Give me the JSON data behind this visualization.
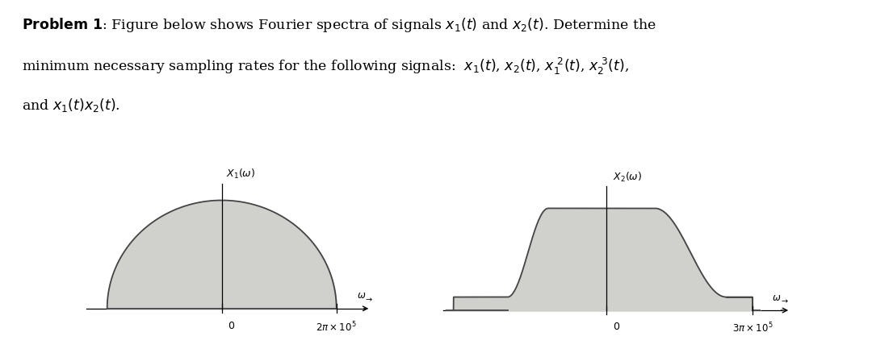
{
  "fill_color": "#d0d0cc",
  "edge_color": "#444444",
  "line_color": "#000000",
  "bg_color": "#ffffff",
  "graph1": {
    "x_label": "2π × 10⁵",
    "y_label": "X₁(ω)",
    "omega_arrow": "ω →"
  },
  "graph2": {
    "x_label": "3π × 10⁵",
    "y_label": "X₂(ω)",
    "omega_arrow": "ω →"
  },
  "text_line1": "minimum necessary sampling rates for the following signals: ",
  "text_line3": "and "
}
